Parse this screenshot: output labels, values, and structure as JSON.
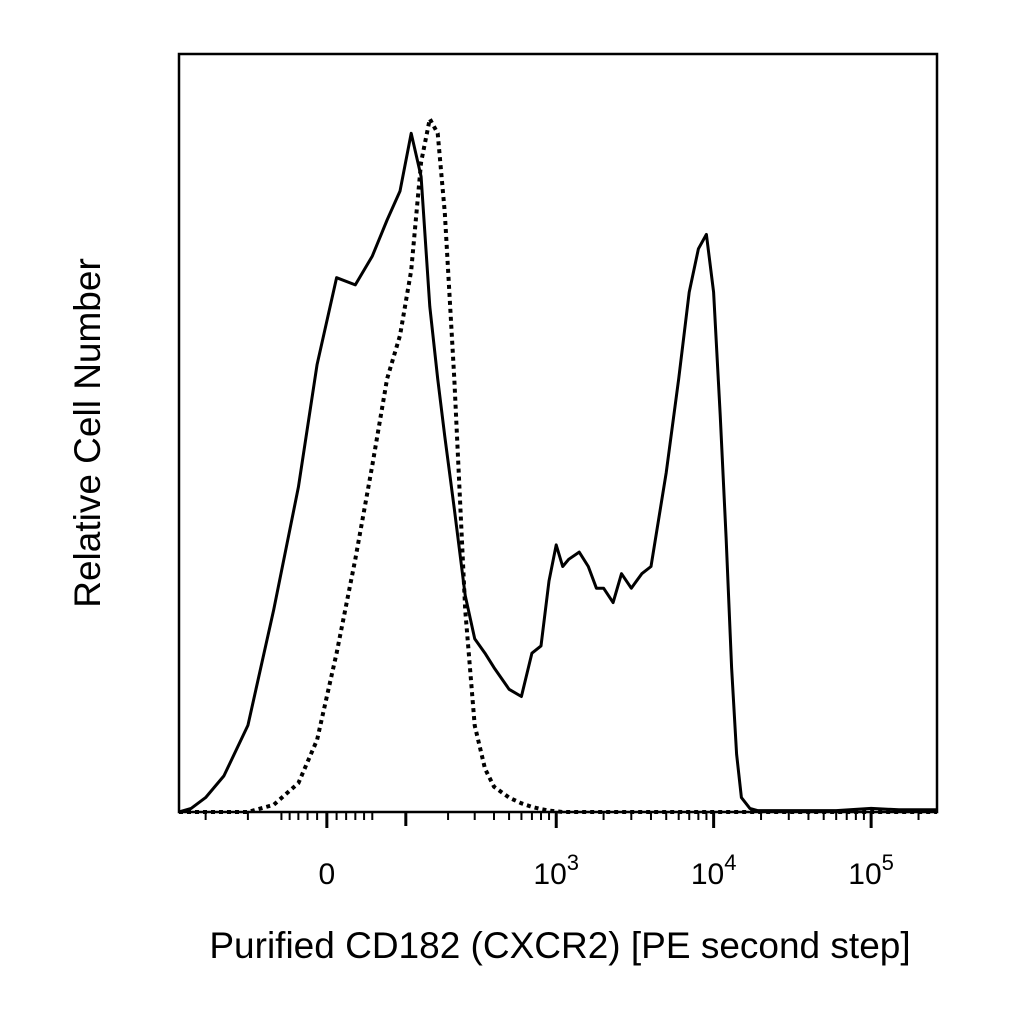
{
  "chart_data": {
    "type": "line",
    "title": "",
    "xlabel": "Purified CD182 (CXCR2) [PE second step]",
    "ylabel": "Relative Cell Number",
    "x_scale": "biexponential",
    "tick_labels": [
      {
        "base": "0",
        "exp": "",
        "value": 0
      },
      {
        "base": "10",
        "exp": "3",
        "value": 1000
      },
      {
        "base": "10",
        "exp": "4",
        "value": 10000
      },
      {
        "base": "10",
        "exp": "5",
        "value": 100000
      }
    ],
    "grid": false,
    "legend": "none",
    "series": [
      {
        "style": "solid",
        "color": "#000000",
        "x": [
          -300,
          -250,
          -200,
          -150,
          -100,
          -60,
          -30,
          -10,
          10,
          30,
          50,
          70,
          90,
          110,
          130,
          150,
          170,
          190,
          220,
          260,
          300,
          350,
          400,
          500,
          600,
          700,
          800,
          900,
          1000,
          1100,
          1200,
          1400,
          1600,
          1800,
          2000,
          2300,
          2600,
          3000,
          3500,
          4000,
          5000,
          6000,
          7000,
          8000,
          9000,
          10000,
          11000,
          12000,
          13000,
          14000,
          15000,
          17000,
          19000,
          22000,
          25000,
          30000,
          40000,
          60000,
          100000,
          150000,
          200000,
          262000
        ],
        "y": [
          0,
          0.5,
          2,
          5,
          12,
          28,
          45,
          62,
          74,
          73,
          77,
          82,
          86,
          94,
          88,
          70,
          60,
          52,
          42,
          30,
          24,
          22,
          20,
          17,
          16,
          22,
          23,
          32,
          37,
          34,
          35,
          36,
          34,
          31,
          31,
          29,
          33,
          31,
          33,
          34,
          47,
          60,
          72,
          78,
          80,
          72,
          55,
          38,
          20,
          8,
          2,
          0.5,
          0.2,
          0.2,
          0.2,
          0.2,
          0.2,
          0.2,
          0.5,
          0.3,
          0.3,
          0.3
        ]
      },
      {
        "style": "dotted",
        "color": "#000000",
        "x": [
          -300,
          -250,
          -200,
          -150,
          -100,
          -60,
          -30,
          -10,
          10,
          30,
          50,
          70,
          90,
          110,
          130,
          150,
          170,
          190,
          220,
          260,
          300,
          350,
          400,
          500,
          600,
          700,
          800,
          900,
          1000,
          1100,
          1200,
          1400,
          1600,
          1800,
          2000,
          2300,
          2600,
          3000,
          3500,
          4000,
          5000,
          6000,
          7000,
          8000,
          9000,
          10000,
          11000,
          12000,
          13000,
          14000,
          15000,
          17000,
          19000,
          22000,
          25000,
          30000,
          40000,
          60000,
          100000,
          150000,
          200000,
          262000
        ],
        "y": [
          0,
          0,
          0,
          0,
          0,
          1,
          4,
          10,
          22,
          35,
          48,
          60,
          66,
          75,
          90,
          96,
          94,
          83,
          60,
          28,
          12,
          6,
          3.5,
          2,
          1.2,
          0.7,
          0.4,
          0.2,
          0.1,
          0,
          0,
          0,
          0,
          0,
          0,
          0,
          0,
          0,
          0,
          0,
          0,
          0,
          0,
          0,
          0,
          0,
          0,
          0,
          0,
          0,
          0,
          0,
          0,
          0,
          0,
          0,
          0,
          0,
          0,
          0,
          0,
          0
        ]
      }
    ]
  }
}
